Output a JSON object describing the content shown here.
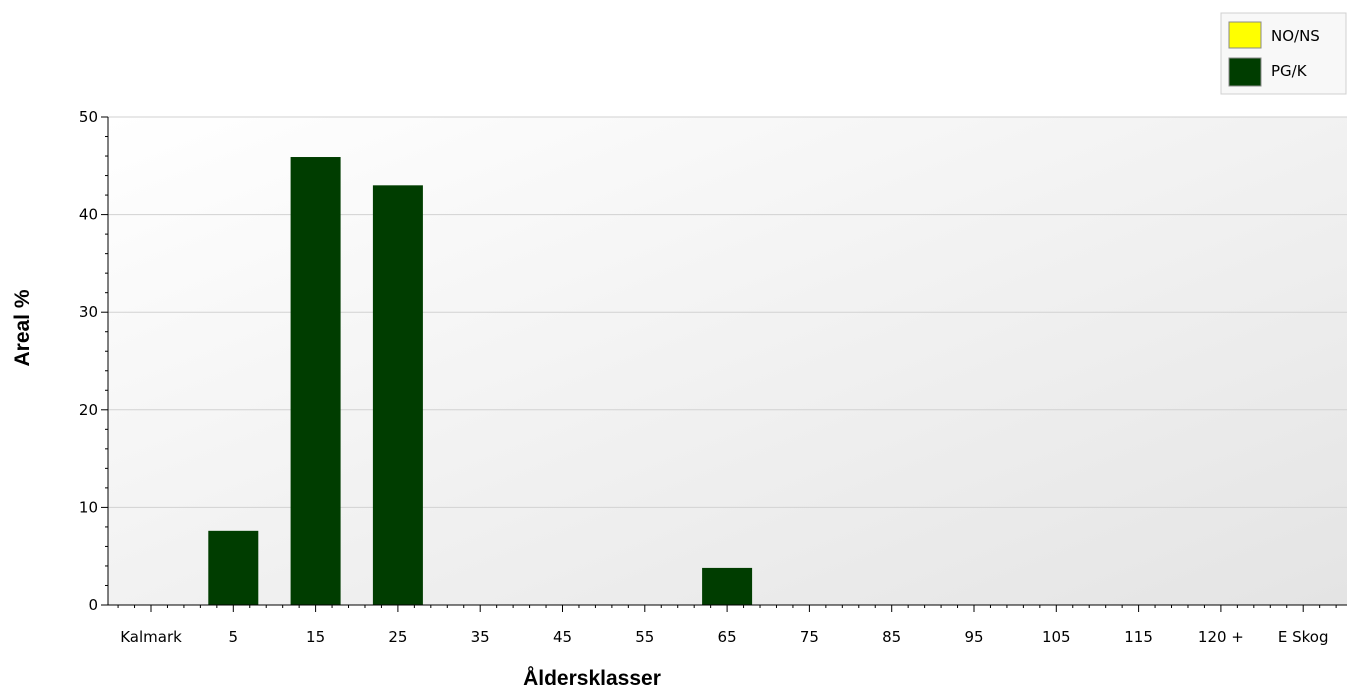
{
  "chart_data": {
    "type": "bar",
    "title": "",
    "xlabel": "Åldersklasser",
    "ylabel": "Areal %",
    "ylim": [
      0,
      50
    ],
    "yticks": [
      0,
      10,
      20,
      30,
      40,
      50
    ],
    "categories": [
      "Kalmark",
      "5",
      "15",
      "25",
      "35",
      "45",
      "55",
      "65",
      "75",
      "85",
      "95",
      "105",
      "115",
      "120 +",
      "E Skog"
    ],
    "series": [
      {
        "name": "NO/NS",
        "color": "#ffff00",
        "values": [
          0,
          0,
          0,
          0,
          0,
          0,
          0,
          0,
          0,
          0,
          0,
          0,
          0,
          0,
          0
        ]
      },
      {
        "name": "PG/K",
        "color": "#003d00",
        "values": [
          0,
          7.6,
          45.9,
          43.0,
          0,
          0,
          0,
          3.8,
          0,
          0,
          0,
          0,
          0,
          0,
          0
        ]
      }
    ],
    "grid": true,
    "legend_position": "top-right"
  }
}
